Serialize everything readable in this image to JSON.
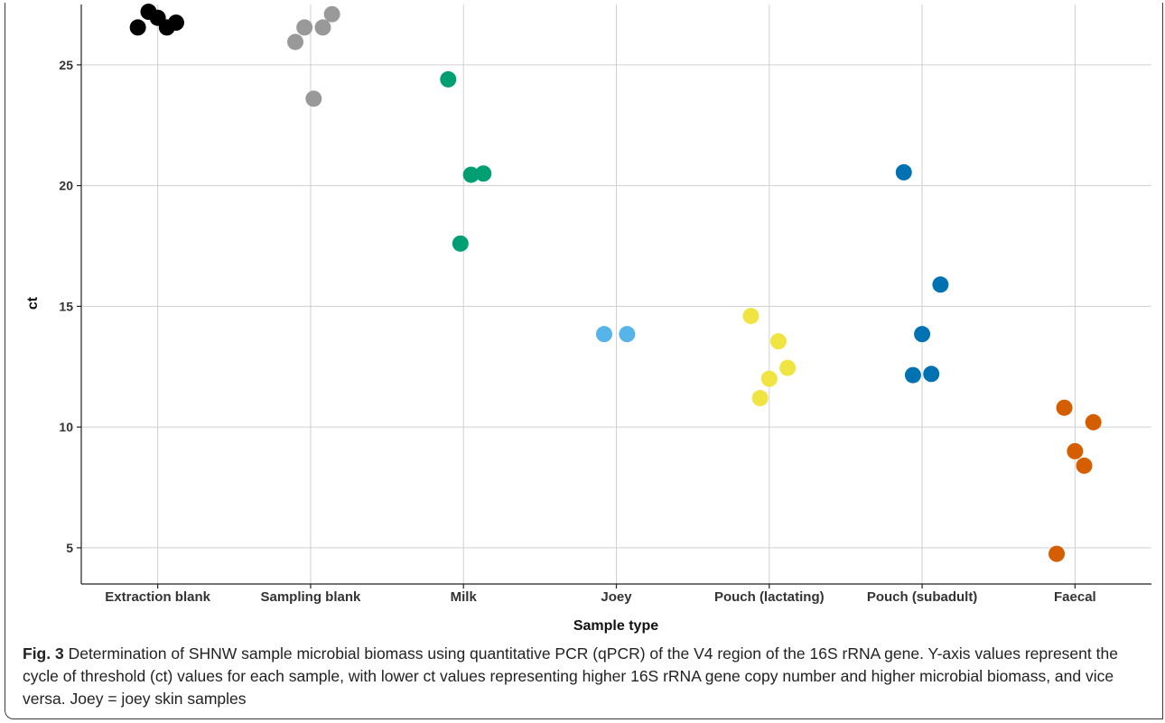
{
  "chart_data": {
    "type": "scatter",
    "title": "",
    "xlabel": "Sample type",
    "ylabel": "ct",
    "categories": [
      "Extraction blank",
      "Sampling blank",
      "Milk",
      "Joey",
      "Pouch (lactating)",
      "Pouch (subadult)",
      "Faecal"
    ],
    "ylim": [
      3.5,
      27.5
    ],
    "yticks": [
      5,
      10,
      15,
      20,
      25
    ],
    "grid": true,
    "legend": "none",
    "series": [
      {
        "category": "Extraction blank",
        "color": "#000000",
        "points": [
          {
            "jitter": -0.13,
            "y": 26.55
          },
          {
            "jitter": -0.06,
            "y": 27.2
          },
          {
            "jitter": 0.0,
            "y": 26.95
          },
          {
            "jitter": 0.06,
            "y": 26.55
          },
          {
            "jitter": 0.12,
            "y": 26.75
          }
        ]
      },
      {
        "category": "Sampling blank",
        "color": "#999999",
        "points": [
          {
            "jitter": -0.1,
            "y": 25.95
          },
          {
            "jitter": -0.04,
            "y": 26.55
          },
          {
            "jitter": 0.02,
            "y": 23.6
          },
          {
            "jitter": 0.08,
            "y": 26.55
          },
          {
            "jitter": 0.14,
            "y": 27.1
          }
        ]
      },
      {
        "category": "Milk",
        "color": "#009E73",
        "points": [
          {
            "jitter": -0.1,
            "y": 24.4
          },
          {
            "jitter": -0.02,
            "y": 17.6
          },
          {
            "jitter": 0.05,
            "y": 20.45
          },
          {
            "jitter": 0.13,
            "y": 20.5
          }
        ]
      },
      {
        "category": "Joey",
        "color": "#56B4E9",
        "points": [
          {
            "jitter": -0.08,
            "y": 13.85
          },
          {
            "jitter": 0.07,
            "y": 13.85
          }
        ]
      },
      {
        "category": "Pouch (lactating)",
        "color": "#F0E442",
        "points": [
          {
            "jitter": -0.12,
            "y": 14.6
          },
          {
            "jitter": -0.06,
            "y": 11.2
          },
          {
            "jitter": 0.0,
            "y": 12.0
          },
          {
            "jitter": 0.06,
            "y": 13.55
          },
          {
            "jitter": 0.12,
            "y": 12.45
          }
        ]
      },
      {
        "category": "Pouch (subadult)",
        "color": "#0072B2",
        "points": [
          {
            "jitter": -0.12,
            "y": 20.55
          },
          {
            "jitter": -0.06,
            "y": 12.15
          },
          {
            "jitter": 0.0,
            "y": 13.85
          },
          {
            "jitter": 0.06,
            "y": 12.2
          },
          {
            "jitter": 0.12,
            "y": 15.9
          }
        ]
      },
      {
        "category": "Faecal",
        "color": "#D55E00",
        "points": [
          {
            "jitter": -0.12,
            "y": 4.75
          },
          {
            "jitter": -0.07,
            "y": 10.8
          },
          {
            "jitter": 0.0,
            "y": 9.0
          },
          {
            "jitter": 0.06,
            "y": 8.4
          },
          {
            "jitter": 0.12,
            "y": 10.2
          }
        ]
      }
    ]
  },
  "caption": {
    "label": "Fig. 3",
    "text": "Determination of SHNW sample microbial biomass using quantitative PCR (qPCR) of the V4 region of the 16S rRNA gene. Y-axis values represent the cycle of threshold (ct) values for each sample, with lower ct values representing higher 16S rRNA gene copy number and higher microbial biomass, and vice versa. Joey = joey skin samples"
  }
}
